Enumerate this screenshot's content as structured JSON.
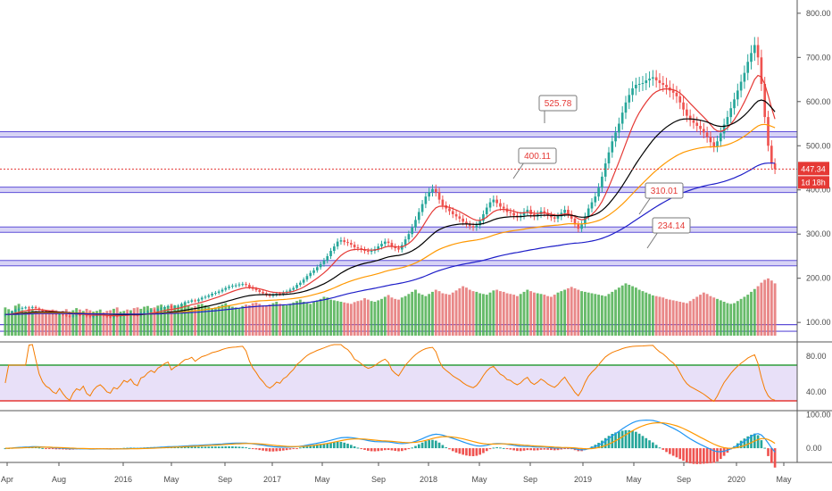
{
  "chart_data": {
    "type": "candlestick",
    "price_axis": {
      "ticks": [
        "800.00",
        "700.00",
        "600.00",
        "500.00",
        "400.00",
        "300.00",
        "200.00",
        "100.00"
      ],
      "ylim": [
        70,
        830
      ]
    },
    "current_price": {
      "value": 447.34,
      "label": "447.34",
      "countdown": "1d 18h"
    },
    "levels": [
      {
        "value": 525.78,
        "label": "525.78"
      },
      {
        "value": 400.11,
        "label": "400.11"
      },
      {
        "value": 310.01,
        "label": "310.01"
      },
      {
        "value": 234.14,
        "label": "234.14"
      }
    ],
    "x_axis_labels": [
      "Apr",
      "Aug",
      "2016",
      "May",
      "Sep",
      "2017",
      "May",
      "Sep",
      "2018",
      "May",
      "Sep",
      "2019",
      "May",
      "Sep",
      "2020",
      "May"
    ],
    "weekly_close": [
      118,
      120,
      124,
      128,
      131,
      133,
      134,
      133,
      135,
      132,
      128,
      125,
      123,
      122,
      120,
      119,
      121,
      118,
      115,
      113,
      116,
      118,
      117,
      119,
      114,
      112,
      115,
      117,
      118,
      116,
      113,
      112,
      115,
      114,
      116,
      119,
      118,
      120,
      117,
      116,
      121,
      122,
      125,
      127,
      126,
      130,
      132,
      135,
      137,
      133,
      136,
      138,
      142,
      146,
      147,
      150,
      148,
      152,
      156,
      158,
      161,
      165,
      167,
      170,
      174,
      178,
      181,
      183,
      184,
      186,
      187,
      185,
      180,
      176,
      173,
      169,
      166,
      162,
      160,
      162,
      165,
      164,
      168,
      170,
      174,
      178,
      185,
      190,
      197,
      205,
      212,
      218,
      225,
      232,
      240,
      250,
      262,
      272,
      283,
      286,
      282,
      280,
      276,
      270,
      268,
      265,
      262,
      260,
      262,
      266,
      272,
      278,
      283,
      280,
      272,
      268,
      265,
      275,
      288,
      300,
      315,
      332,
      350,
      368,
      385,
      395,
      402,
      395,
      378,
      365,
      358,
      352,
      345,
      340,
      335,
      328,
      322,
      318,
      315,
      320,
      330,
      345,
      360,
      372,
      378,
      370,
      362,
      358,
      350,
      348,
      342,
      338,
      342,
      350,
      355,
      345,
      340,
      345,
      352,
      348,
      342,
      338,
      335,
      340,
      348,
      355,
      345,
      335,
      322,
      312,
      322,
      340,
      358,
      372,
      385,
      405,
      430,
      460,
      485,
      510,
      530,
      550,
      575,
      598,
      615,
      630,
      638,
      640,
      642,
      648,
      652,
      655,
      648,
      642,
      638,
      632,
      625,
      620,
      612,
      598,
      582,
      568,
      558,
      552,
      545,
      538,
      530,
      520,
      508,
      498,
      510,
      528,
      548,
      565,
      585,
      605,
      625,
      645,
      665,
      690,
      710,
      728,
      700,
      640,
      565,
      500,
      460,
      447
    ],
    "volume": [
      80,
      75,
      70,
      85,
      90,
      72,
      68,
      76,
      74,
      70,
      65,
      62,
      70,
      68,
      74,
      72,
      66,
      70,
      75,
      68,
      72,
      78,
      74,
      70,
      76,
      72,
      68,
      70,
      74,
      66,
      70,
      72,
      76,
      80,
      68,
      70,
      74,
      72,
      78,
      80,
      76,
      82,
      84,
      78,
      80,
      85,
      88,
      80,
      84,
      90,
      86,
      82,
      88,
      92,
      86,
      80,
      84,
      88,
      90,
      86,
      82,
      78,
      80,
      84,
      88,
      92,
      86,
      82,
      80,
      78,
      84,
      88,
      86,
      92,
      94,
      90,
      86,
      84,
      88,
      92,
      96,
      90,
      88,
      86,
      90,
      94,
      98,
      102,
      96,
      92,
      90,
      95,
      100,
      104,
      110,
      108,
      102,
      100,
      98,
      96,
      94,
      92,
      90,
      95,
      98,
      100,
      106,
      102,
      98,
      96,
      100,
      104,
      110,
      115,
      108,
      104,
      102,
      108,
      112,
      118,
      124,
      130,
      120,
      116,
      112,
      118,
      124,
      130,
      126,
      120,
      118,
      116,
      122,
      128,
      134,
      140,
      136,
      130,
      126,
      124,
      120,
      118,
      116,
      122,
      128,
      130,
      126,
      124,
      120,
      118,
      116,
      112,
      118,
      124,
      130,
      126,
      122,
      120,
      118,
      116,
      112,
      110,
      116,
      122,
      126,
      130,
      134,
      138,
      134,
      130,
      126,
      124,
      122,
      120,
      118,
      116,
      114,
      112,
      118,
      124,
      130,
      136,
      142,
      148,
      144,
      140,
      136,
      130,
      126,
      122,
      118,
      114,
      112,
      110,
      108,
      104,
      102,
      100,
      98,
      96,
      94,
      92,
      98,
      104,
      110,
      116,
      122,
      118,
      112,
      108,
      104,
      100,
      96,
      92,
      90,
      92,
      98,
      104,
      110,
      116,
      124,
      132,
      140,
      150,
      158,
      162,
      156,
      148
    ],
    "rsi": {
      "levels": [
        "80.00",
        "40.00"
      ],
      "ylim": [
        20,
        95
      ],
      "upper_band": 70,
      "lower_band": 30
    },
    "macd": {
      "levels": [
        "100.00",
        "0.00"
      ],
      "ylim": [
        -40,
        110
      ]
    },
    "grid": false
  },
  "colors": {
    "up": "#26a69a",
    "down": "#ef5350",
    "price_line": "#e53935",
    "ema_fast": "#e53935",
    "ema_mid": "#000000",
    "ema_slow": "#ff9800",
    "ema_long": "#1e1ec8",
    "level": "#5e4fd8",
    "rsi_band": "#e8e0f8"
  }
}
